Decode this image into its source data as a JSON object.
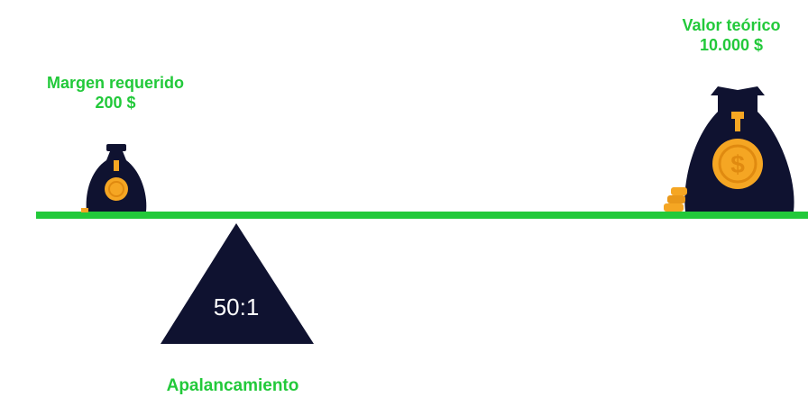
{
  "margin": {
    "title": "Margen requerido",
    "amount": "200 $"
  },
  "notional": {
    "title": "Valor teórico",
    "amount": "10.000 $"
  },
  "leverage": {
    "ratio": "50:1",
    "label": "Apalancamiento"
  },
  "colors": {
    "accent": "#22c93a",
    "bag": "#0f1230",
    "coin": "#f5a623",
    "tie": "#f5a623"
  },
  "icons": {
    "small_bag": "money-bag-icon",
    "large_bag": "money-bag-icon",
    "coins": "coin-stack-icon",
    "fulcrum": "triangle-fulcrum-icon"
  }
}
